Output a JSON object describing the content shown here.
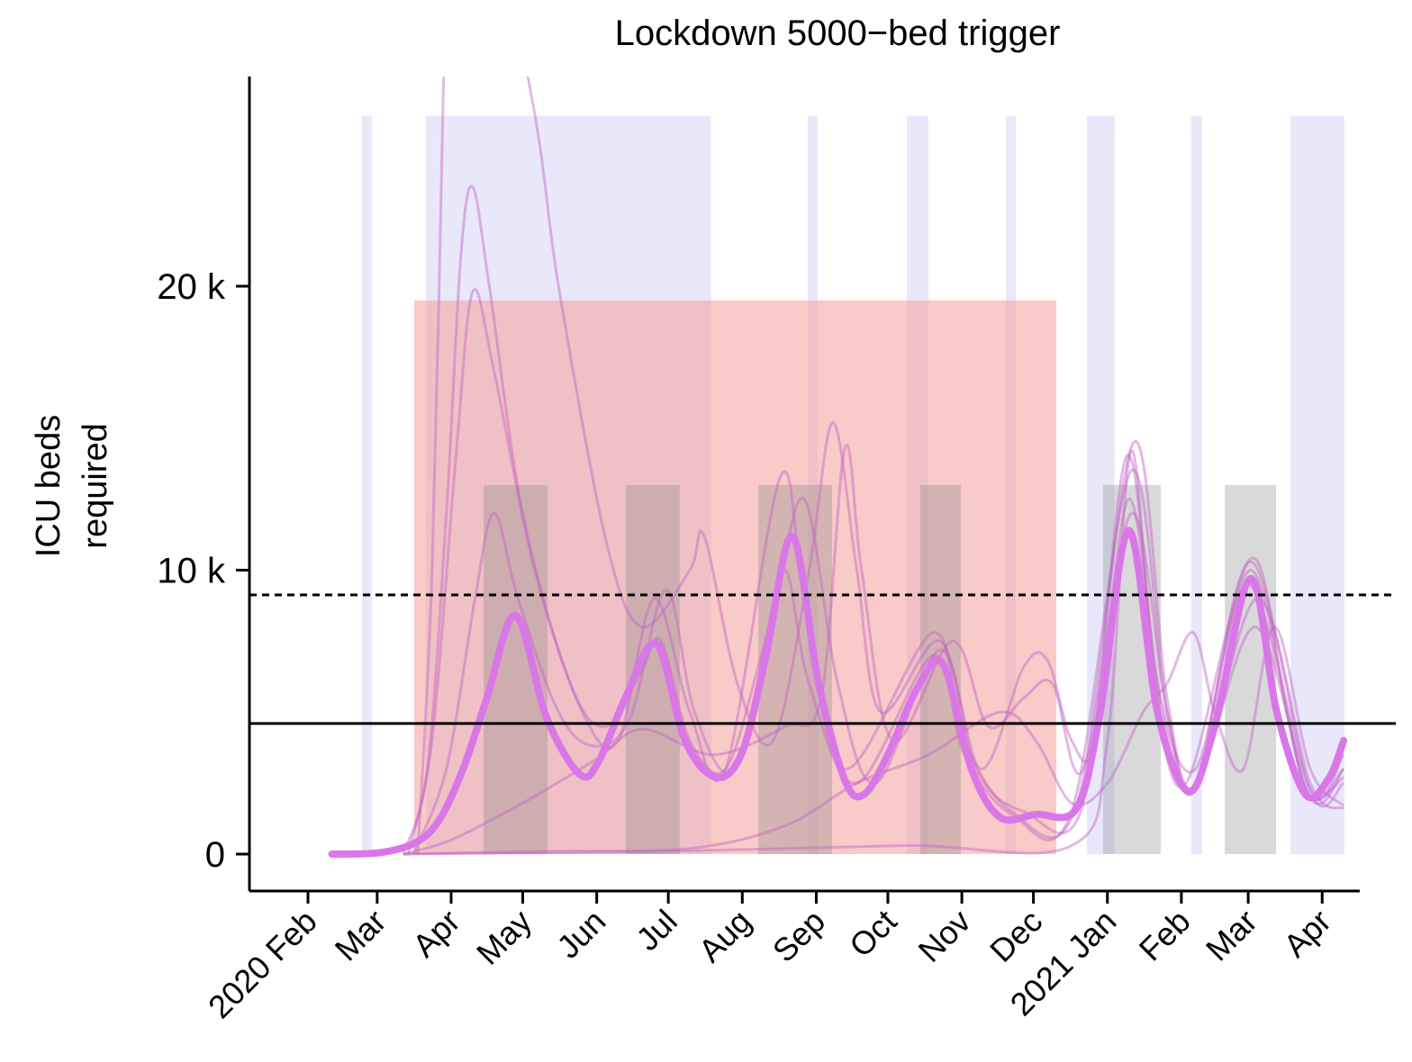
{
  "chart_data": {
    "type": "line",
    "title": "Lockdown 5000−bed trigger",
    "ylabel_lines": [
      "ICU beds",
      "required"
    ],
    "xlabel": "",
    "x_units": "days since 2020-02-01",
    "xlim": [
      -24,
      441
    ],
    "ylim_k": [
      -1.3,
      27
    ],
    "y_ticks": [
      {
        "value": 0,
        "label": "0"
      },
      {
        "value": 10,
        "label": "10 k"
      },
      {
        "value": 20,
        "label": "20 k"
      }
    ],
    "x_ticks": [
      {
        "day": 0,
        "label": "2020 Feb"
      },
      {
        "day": 29,
        "label": "Mar"
      },
      {
        "day": 60,
        "label": "Apr"
      },
      {
        "day": 90,
        "label": "May"
      },
      {
        "day": 121,
        "label": "Jun"
      },
      {
        "day": 151,
        "label": "Jul"
      },
      {
        "day": 182,
        "label": "Aug"
      },
      {
        "day": 213,
        "label": "Sep"
      },
      {
        "day": 243,
        "label": "Oct"
      },
      {
        "day": 274,
        "label": "Nov"
      },
      {
        "day": 304,
        "label": "Dec"
      },
      {
        "day": 335,
        "label": "2021 Jan"
      },
      {
        "day": 366,
        "label": "Feb"
      },
      {
        "day": 394,
        "label": "Mar"
      },
      {
        "day": 425,
        "label": "Apr"
      }
    ],
    "reference_lines": [
      {
        "name": "capacity",
        "value_k": 9.13,
        "style": "dashed"
      },
      {
        "name": "trigger",
        "value_k": 4.6,
        "style": "solid"
      }
    ],
    "blue_bands": [
      [
        22.6,
        26.8
      ],
      [
        49.4,
        169
      ],
      [
        209.4,
        213.6
      ],
      [
        251,
        260
      ],
      [
        292.5,
        296.6
      ],
      [
        326.4,
        338
      ],
      [
        370,
        374.7
      ],
      [
        411.7,
        434.3
      ]
    ],
    "blue_band_top_k": 26,
    "red_band": [
      44.5,
      313.6
    ],
    "red_band_top_k": 19.5,
    "gray_bands": [
      [
        73.6,
        100.4
      ],
      [
        133.2,
        155.8
      ],
      [
        188.7,
        219.6
      ],
      [
        256.6,
        273.6
      ],
      [
        333.2,
        357.4
      ],
      [
        384.2,
        405.7
      ]
    ],
    "gray_band_top_k": 13,
    "colors": {
      "blue": "#d9d9f7",
      "red": "#f3a7a3",
      "gray": "#808080",
      "main": "#d977e8",
      "thin": "#c064c6"
    },
    "series": [
      {
        "name": "median",
        "values_k": [
          [
            10,
            0
          ],
          [
            30,
            0.05
          ],
          [
            45,
            0.4
          ],
          [
            55,
            1.2
          ],
          [
            65,
            3
          ],
          [
            75,
            5.5
          ],
          [
            87,
            8.4
          ],
          [
            100,
            4.8
          ],
          [
            114,
            2.8
          ],
          [
            122,
            3.3
          ],
          [
            133,
            5.5
          ],
          [
            146,
            7.4
          ],
          [
            158,
            4
          ],
          [
            171,
            2.7
          ],
          [
            182,
            3.6
          ],
          [
            192,
            7
          ],
          [
            203,
            11.2
          ],
          [
            214,
            6
          ],
          [
            225,
            2.6
          ],
          [
            233,
            2.1
          ],
          [
            243,
            3.5
          ],
          [
            255,
            5.8
          ],
          [
            266,
            6.7
          ],
          [
            278,
            3
          ],
          [
            290,
            1.3
          ],
          [
            305,
            1.4
          ],
          [
            322,
            1.6
          ],
          [
            332,
            5
          ],
          [
            344,
            11.4
          ],
          [
            356,
            5
          ],
          [
            369,
            2.2
          ],
          [
            380,
            4.5
          ],
          [
            395,
            9.7
          ],
          [
            406,
            5
          ],
          [
            418,
            2.1
          ],
          [
            428,
            2.7
          ],
          [
            434,
            4
          ]
        ]
      },
      {
        "name": "run-1",
        "values_k": [
          [
            40,
            0
          ],
          [
            50,
            3
          ],
          [
            58,
            12
          ],
          [
            64,
            21
          ],
          [
            69,
            23.5
          ],
          [
            76,
            20
          ],
          [
            90,
            12
          ],
          [
            110,
            6
          ],
          [
            125,
            4.5
          ],
          [
            140,
            6.5
          ],
          [
            148,
            7.5
          ],
          [
            160,
            4
          ],
          [
            175,
            3
          ],
          [
            190,
            7
          ],
          [
            200,
            10
          ],
          [
            210,
            6
          ],
          [
            230,
            2.5
          ],
          [
            262,
            7
          ],
          [
            275,
            3.5
          ],
          [
            295,
            1.4
          ],
          [
            320,
            1.5
          ],
          [
            345,
            13.5
          ],
          [
            360,
            5
          ],
          [
            372,
            2.3
          ],
          [
            395,
            10
          ],
          [
            418,
            2.3
          ],
          [
            434,
            3
          ]
        ]
      },
      {
        "name": "run-2",
        "values_k": [
          [
            42,
            0
          ],
          [
            52,
            4
          ],
          [
            62,
            14
          ],
          [
            69,
            19.8
          ],
          [
            78,
            17
          ],
          [
            95,
            10
          ],
          [
            115,
            5
          ],
          [
            130,
            4
          ],
          [
            145,
            9
          ],
          [
            160,
            5
          ],
          [
            175,
            3
          ],
          [
            198,
            13.3
          ],
          [
            208,
            9
          ],
          [
            225,
            3
          ],
          [
            262,
            7.8
          ],
          [
            275,
            4
          ],
          [
            295,
            1.5
          ],
          [
            322,
            1.7
          ],
          [
            346,
            14.5
          ],
          [
            360,
            5.5
          ],
          [
            372,
            2.5
          ],
          [
            395,
            10.3
          ],
          [
            420,
            2.2
          ],
          [
            434,
            2.5
          ]
        ]
      },
      {
        "name": "run-3",
        "values_k": [
          [
            46,
            0
          ],
          [
            52,
            10
          ],
          [
            57,
            28
          ],
          [
            60,
            40
          ],
          [
            93,
            27
          ],
          [
            105,
            20
          ],
          [
            125,
            11
          ],
          [
            140,
            8
          ],
          [
            160,
            10
          ],
          [
            166,
            11.2
          ],
          [
            180,
            6
          ],
          [
            195,
            4
          ],
          [
            210,
            10
          ],
          [
            220,
            15.2
          ],
          [
            230,
            10
          ],
          [
            240,
            5
          ],
          [
            265,
            7.5
          ],
          [
            280,
            3
          ],
          [
            300,
            1.5
          ],
          [
            325,
            1.8
          ],
          [
            343,
            14
          ],
          [
            356,
            6
          ],
          [
            372,
            3
          ],
          [
            394,
            9.5
          ],
          [
            420,
            2.3
          ],
          [
            434,
            3.5
          ]
        ]
      },
      {
        "name": "run-4",
        "values_k": [
          [
            44,
            0
          ],
          [
            58,
            3
          ],
          [
            70,
            9
          ],
          [
            78,
            12
          ],
          [
            88,
            9
          ],
          [
            105,
            5
          ],
          [
            120,
            3.8
          ],
          [
            135,
            4.8
          ],
          [
            150,
            9.3
          ],
          [
            162,
            5
          ],
          [
            178,
            3
          ],
          [
            195,
            8.5
          ],
          [
            208,
            12.5
          ],
          [
            222,
            6
          ],
          [
            238,
            2.5
          ],
          [
            265,
            7.2
          ],
          [
            282,
            3
          ],
          [
            300,
            6.6
          ],
          [
            310,
            6.8
          ],
          [
            320,
            4
          ],
          [
            330,
            4
          ],
          [
            344,
            12.5
          ],
          [
            358,
            5
          ],
          [
            372,
            2.4
          ],
          [
            397,
            8
          ],
          [
            420,
            2
          ],
          [
            434,
            3
          ]
        ]
      },
      {
        "name": "run-5",
        "values_k": [
          [
            40,
            0
          ],
          [
            60,
            0.5
          ],
          [
            90,
            1.8
          ],
          [
            120,
            3.3
          ],
          [
            140,
            4.4
          ],
          [
            170,
            3.5
          ],
          [
            200,
            4.5
          ],
          [
            215,
            5.5
          ],
          [
            225,
            14.3
          ],
          [
            232,
            10
          ],
          [
            245,
            4
          ],
          [
            270,
            7.5
          ],
          [
            285,
            4.5
          ],
          [
            300,
            5.5
          ],
          [
            312,
            6
          ],
          [
            325,
            3
          ],
          [
            345,
            12
          ],
          [
            360,
            5
          ],
          [
            372,
            2.3
          ],
          [
            398,
            9
          ],
          [
            420,
            2.5
          ],
          [
            434,
            1.6
          ]
        ]
      },
      {
        "name": "run-6",
        "values_k": [
          [
            40,
            0
          ],
          [
            100,
            0.1
          ],
          [
            160,
            0.2
          ],
          [
            200,
            1
          ],
          [
            230,
            2.5
          ],
          [
            260,
            3.5
          ],
          [
            290,
            5
          ],
          [
            305,
            4
          ],
          [
            320,
            1.8
          ],
          [
            335,
            2.5
          ],
          [
            350,
            5
          ],
          [
            360,
            6
          ],
          [
            371,
            7.8
          ],
          [
            380,
            5
          ],
          [
            392,
            3
          ],
          [
            405,
            8
          ],
          [
            420,
            3
          ],
          [
            434,
            1.7
          ]
        ]
      },
      {
        "name": "run-7",
        "values_k": [
          [
            40,
            0
          ],
          [
            150,
            0.1
          ],
          [
            250,
            0.3
          ],
          [
            320,
            0.3
          ],
          [
            335,
            4
          ],
          [
            345,
            14.2
          ],
          [
            355,
            6
          ],
          [
            368,
            2.5
          ],
          [
            395,
            10.4
          ],
          [
            410,
            5
          ],
          [
            420,
            2
          ],
          [
            434,
            2.7
          ]
        ]
      }
    ]
  }
}
